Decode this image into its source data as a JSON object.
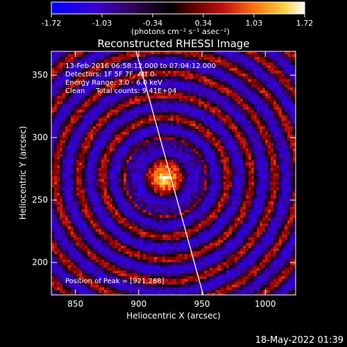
{
  "chart_data": {
    "type": "heatmap",
    "title": "Reconstructed RHESSI Image",
    "xlabel": "Heliocentric X (arcsec)",
    "ylabel": "Heliocentric Y (arcsec)",
    "xlim": [
      831,
      1024
    ],
    "ylim": [
      174,
      369
    ],
    "x_ticks": [
      850,
      900,
      950,
      1000
    ],
    "y_ticks": [
      200,
      250,
      300,
      350
    ],
    "colorbar": {
      "min": -1.72,
      "max": 1.72,
      "ticks": [
        "-1.72",
        "-1.03",
        "-0.34",
        "0.34",
        "1.03",
        "1.72"
      ],
      "units_label": "(photons cm⁻² s⁻¹ asec⁻²)"
    },
    "annotations": [
      "13-Feb-2016 06:58:12.000 to 07:04:12.000",
      "Detectors: 1F 5F 7F, Att 0",
      "Energy Range: 3.0 - 6.0 keV",
      "Clean     Total counts: 9.41E+04"
    ],
    "peak_label": "Position of Peak = [921,268]",
    "peak": {
      "x": 921,
      "y": 268
    },
    "limb_line": {
      "x_start": 898,
      "y_start": 369,
      "x_end": 951,
      "y_end": 174
    },
    "colors": {
      "background": "#000000",
      "text": "#ffffff",
      "axes": "#ffffff"
    }
  },
  "footer": {
    "timestamp": "18-May-2022 01:39"
  }
}
